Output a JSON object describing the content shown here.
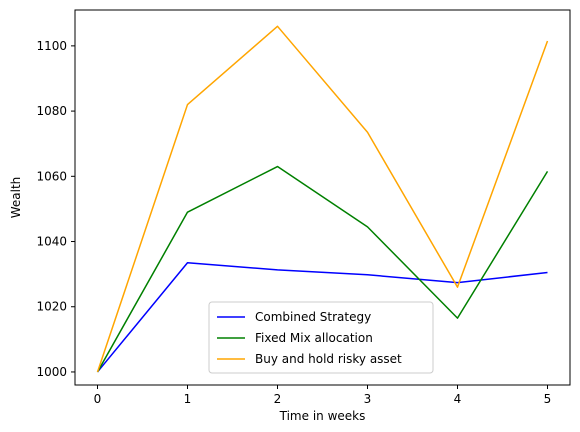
{
  "chart_data": {
    "type": "line",
    "title": "",
    "xlabel": "Time in weeks",
    "ylabel": "Wealth",
    "x": [
      0,
      1,
      2,
      3,
      4,
      5
    ],
    "xlim": [
      -0.25,
      5.25
    ],
    "ylim": [
      996,
      1111
    ],
    "xticks": [
      "0",
      "1",
      "2",
      "3",
      "4",
      "5"
    ],
    "yticks": [
      1000,
      1020,
      1040,
      1060,
      1080,
      1100
    ],
    "yticklabels": [
      "1000",
      "1020",
      "1040",
      "1060",
      "1080",
      "1100"
    ],
    "grid": false,
    "legend_position": "bottom-center",
    "series": [
      {
        "name": "Combined Strategy",
        "color": "#0000ff",
        "values": [
          1000,
          1033.5,
          1031.3,
          1029.8,
          1027.4,
          1030.5
        ]
      },
      {
        "name": "Fixed Mix allocation",
        "color": "#008000",
        "values": [
          1000,
          1049.0,
          1063.0,
          1044.5,
          1016.5,
          1061.5
        ]
      },
      {
        "name": "Buy and hold risky asset",
        "color": "#ffa500",
        "values": [
          1000,
          1082.0,
          1106.0,
          1073.5,
          1026.0,
          1101.5
        ]
      }
    ]
  }
}
